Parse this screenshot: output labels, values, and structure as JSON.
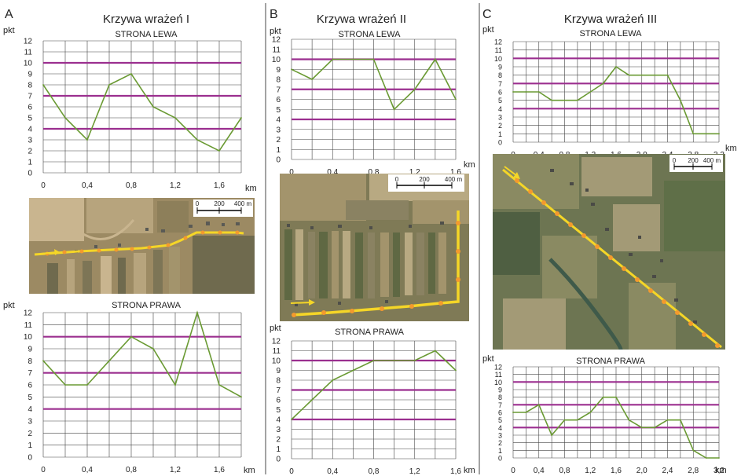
{
  "panels": [
    {
      "letter": "A",
      "title": "Krzywa wrażeń I",
      "unit_label": "pkt",
      "km_label": "km",
      "top_subtitle": "STRONA LEWA",
      "bottom_subtitle": "STRONA PRAWA",
      "scale_bar": {
        "labels": [
          "0",
          "200",
          "400 m"
        ]
      },
      "map_colors": {
        "base": "#9c8a63",
        "field1": "#b7a47d",
        "field2": "#6f6a4e",
        "field3": "#c9b58f",
        "route": "#f5d627",
        "marker": "#f39a2e"
      }
    },
    {
      "letter": "B",
      "title": "Krzywa wrażeń II",
      "unit_label": "pkt",
      "km_label": "km",
      "top_subtitle": "STRONA LEWA",
      "bottom_subtitle": "STRONA PRAWA",
      "scale_bar": {
        "labels": [
          "0",
          "200",
          "400 m"
        ]
      },
      "map_colors": {
        "base": "#7f7a56",
        "field1": "#a3946c",
        "field2": "#5f6843",
        "field3": "#b8a982",
        "route": "#f5d627",
        "marker": "#f39a2e"
      }
    },
    {
      "letter": "C",
      "title": "Krzywa wrażeń III",
      "unit_label": "pkt",
      "km_label": "km",
      "top_subtitle": "STRONA LEWA",
      "bottom_subtitle": "STRONA PRAWA",
      "scale_bar": {
        "labels": [
          "0",
          "200",
          "400 m"
        ]
      },
      "map_colors": {
        "base": "#6d7552",
        "field1": "#8a8a62",
        "field2": "#4f5f42",
        "field3": "#a39a76",
        "route": "#f5d627",
        "marker": "#f39a2e"
      }
    }
  ],
  "colors": {
    "line": "#6a9a33",
    "threshold": "#9b2f8f",
    "grid": "#444444"
  },
  "chart_data": [
    {
      "id": "A-left",
      "type": "line",
      "x": [
        0,
        0.2,
        0.4,
        0.6,
        0.8,
        1.0,
        1.2,
        1.4,
        1.6,
        1.8
      ],
      "values": [
        8,
        5,
        3,
        8,
        9,
        6,
        5,
        3,
        2,
        5
      ],
      "ylim": [
        0,
        12
      ],
      "xticks": [
        "0",
        "0,4",
        "0,8",
        "1,2",
        "1,6"
      ],
      "thresholds": [
        4,
        7,
        10
      ]
    },
    {
      "id": "A-right",
      "type": "line",
      "x": [
        0,
        0.2,
        0.4,
        0.6,
        0.8,
        1.0,
        1.2,
        1.4,
        1.6,
        1.8
      ],
      "values": [
        8,
        6,
        6,
        8,
        10,
        9,
        6,
        12,
        6,
        5
      ],
      "ylim": [
        0,
        12
      ],
      "xticks": [
        "0",
        "0,4",
        "0,8",
        "1,2",
        "1,6"
      ],
      "thresholds": [
        4,
        7,
        10
      ]
    },
    {
      "id": "B-left",
      "type": "line",
      "x": [
        0,
        0.2,
        0.4,
        0.6,
        0.8,
        1.0,
        1.2,
        1.4,
        1.6
      ],
      "values": [
        9,
        8,
        10,
        10,
        10,
        5,
        7,
        10,
        6
      ],
      "ylim": [
        0,
        12
      ],
      "xticks": [
        "0",
        "0,4",
        "0,8",
        "1,2",
        "1,6"
      ],
      "thresholds": [
        4,
        7,
        10
      ]
    },
    {
      "id": "B-right",
      "type": "line",
      "x": [
        0,
        0.2,
        0.4,
        0.6,
        0.8,
        1.0,
        1.2,
        1.4,
        1.6
      ],
      "values": [
        4,
        6,
        8,
        9,
        10,
        10,
        10,
        11,
        9
      ],
      "ylim": [
        0,
        12
      ],
      "xticks": [
        "0",
        "0,4",
        "0,8",
        "1,2",
        "1,6"
      ],
      "thresholds": [
        4,
        7,
        10
      ]
    },
    {
      "id": "C-left",
      "type": "line",
      "x": [
        0,
        0.2,
        0.4,
        0.6,
        0.8,
        1.0,
        1.2,
        1.4,
        1.6,
        1.8,
        2.0,
        2.2,
        2.4,
        2.6,
        2.8,
        3.0,
        3.2
      ],
      "values": [
        6,
        6,
        6,
        5,
        5,
        5,
        6,
        7,
        9,
        8,
        8,
        8,
        8,
        5,
        1,
        1,
        1
      ],
      "ylim": [
        0,
        12
      ],
      "xticks": [
        "0",
        "0,4",
        "0,8",
        "1,2",
        "1,6",
        "2,0",
        "2,4",
        "2,8",
        "3,2"
      ],
      "thresholds": [
        4,
        7,
        10
      ]
    },
    {
      "id": "C-right",
      "type": "line",
      "x": [
        0,
        0.2,
        0.4,
        0.6,
        0.8,
        1.0,
        1.2,
        1.4,
        1.6,
        1.8,
        2.0,
        2.2,
        2.4,
        2.6,
        2.8,
        3.0,
        3.2
      ],
      "values": [
        6,
        6,
        7,
        3,
        5,
        5,
        6,
        8,
        8,
        5,
        4,
        4,
        5,
        5,
        1,
        0,
        0
      ],
      "ylim": [
        0,
        12
      ],
      "xticks": [
        "0",
        "0,4",
        "0,8",
        "1,2",
        "1,6",
        "2,0",
        "2,4",
        "2,8",
        "3,2"
      ],
      "thresholds": [
        4,
        7,
        10
      ]
    }
  ]
}
